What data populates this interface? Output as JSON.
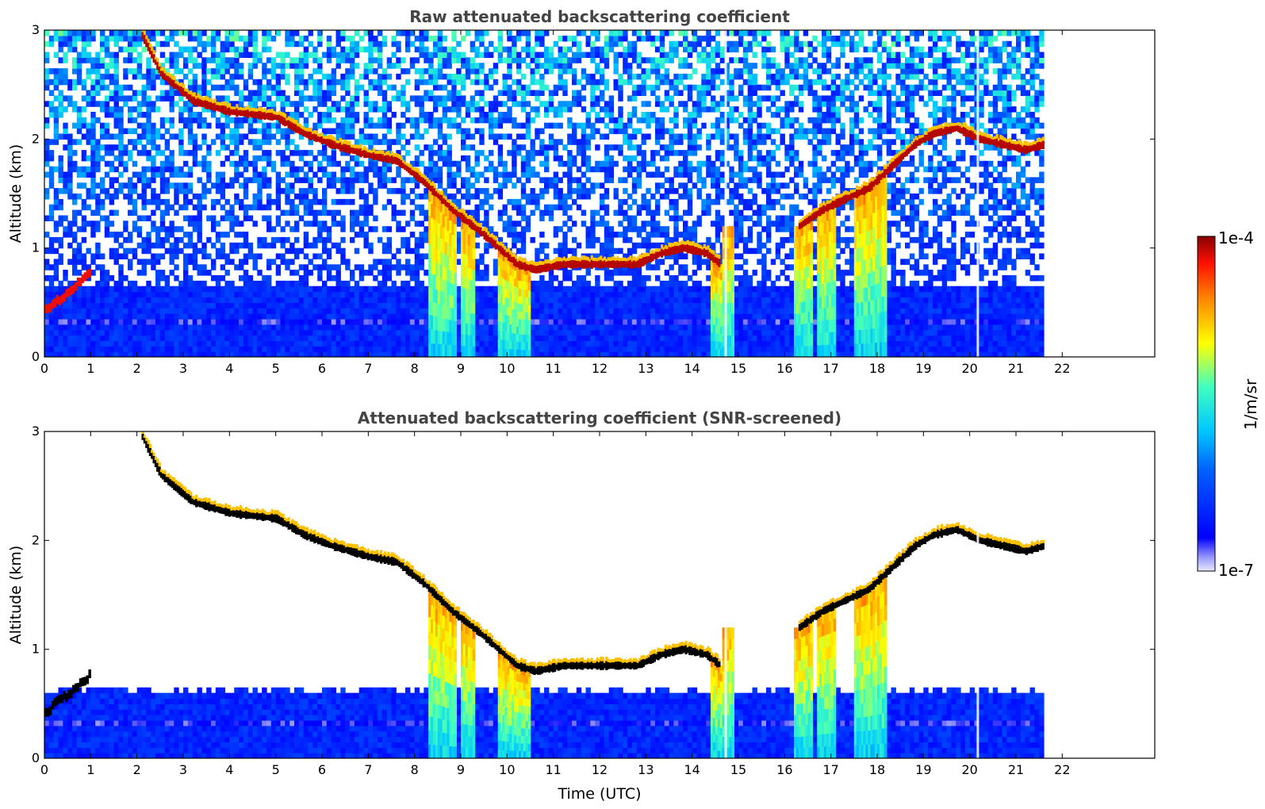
{
  "chart_data": [
    {
      "type": "heatmap",
      "title": "Raw attenuated backscattering coefficient",
      "xlabel": "",
      "ylabel": "Altitude (km)",
      "xlim": [
        0,
        24
      ],
      "ylim": [
        0,
        3
      ],
      "xticks": [
        0,
        1,
        2,
        3,
        4,
        5,
        6,
        7,
        8,
        9,
        10,
        11,
        12,
        13,
        14,
        15,
        16,
        17,
        18,
        19,
        20,
        21,
        22
      ],
      "yticks": [
        0,
        1,
        2,
        3
      ],
      "data_extent_x": [
        0,
        21.6
      ],
      "screened": false
    },
    {
      "type": "heatmap",
      "title": "Attenuated backscattering coefficient (SNR-screened)",
      "xlabel": "Time (UTC)",
      "ylabel": "Altitude (km)",
      "xlim": [
        0,
        24
      ],
      "ylim": [
        0,
        3
      ],
      "xticks": [
        0,
        1,
        2,
        3,
        4,
        5,
        6,
        7,
        8,
        9,
        10,
        11,
        12,
        13,
        14,
        15,
        16,
        17,
        18,
        19,
        20,
        21,
        22
      ],
      "yticks": [
        0,
        1,
        2,
        3
      ],
      "data_extent_x": [
        0,
        21.6
      ],
      "screened": true
    }
  ],
  "colorbar": {
    "label": "1/m/sr",
    "max_label": "1e-4",
    "min_label": "1e-7",
    "scale": "log",
    "colormap": "jet"
  },
  "features": {
    "cloud_base_track": [
      [
        2.1,
        2.95
      ],
      [
        2.5,
        2.6
      ],
      [
        3.2,
        2.35
      ],
      [
        4.0,
        2.25
      ],
      [
        5.0,
        2.2
      ],
      [
        5.6,
        2.05
      ],
      [
        6.2,
        1.95
      ],
      [
        7.0,
        1.85
      ],
      [
        7.6,
        1.8
      ],
      [
        8.2,
        1.6
      ],
      [
        8.8,
        1.35
      ],
      [
        9.4,
        1.15
      ],
      [
        9.8,
        1.0
      ],
      [
        10.2,
        0.85
      ],
      [
        10.6,
        0.8
      ],
      [
        11.2,
        0.85
      ],
      [
        12.0,
        0.85
      ],
      [
        12.8,
        0.85
      ],
      [
        13.3,
        0.95
      ],
      [
        13.8,
        1.0
      ],
      [
        14.3,
        0.95
      ],
      [
        14.6,
        0.85
      ]
    ],
    "late_cloud_track": [
      [
        16.3,
        1.2
      ],
      [
        16.8,
        1.35
      ],
      [
        17.3,
        1.45
      ],
      [
        17.8,
        1.55
      ],
      [
        18.3,
        1.75
      ],
      [
        18.8,
        1.95
      ],
      [
        19.2,
        2.05
      ],
      [
        19.7,
        2.1
      ],
      [
        20.2,
        2.0
      ],
      [
        20.7,
        1.95
      ],
      [
        21.2,
        1.9
      ],
      [
        21.6,
        1.95
      ]
    ],
    "precip_shafts": [
      [
        8.3,
        8.9
      ],
      [
        9.0,
        9.3
      ],
      [
        9.8,
        10.5
      ],
      [
        14.4,
        14.9
      ],
      [
        16.2,
        16.6
      ],
      [
        16.7,
        17.1
      ],
      [
        17.5,
        18.2
      ]
    ],
    "lidar_gap_x": [
      14.7,
      20.15
    ]
  }
}
